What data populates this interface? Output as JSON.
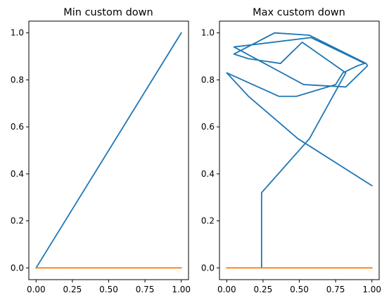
{
  "colors": {
    "series1": "#1f77b4",
    "series2": "#ff7f0e"
  },
  "chart_data": [
    {
      "type": "line",
      "title": "Min custom down",
      "xlim": [
        -0.05,
        1.05
      ],
      "ylim": [
        -0.05,
        1.05
      ],
      "xticks": [
        0.0,
        0.25,
        0.5,
        0.75,
        1.0
      ],
      "xtick_labels": [
        "0.00",
        "0.25",
        "0.50",
        "0.75",
        "1.00"
      ],
      "yticks": [
        0.0,
        0.2,
        0.4,
        0.6,
        0.8,
        1.0
      ],
      "ytick_labels": [
        "0.0",
        "0.2",
        "0.4",
        "0.6",
        "0.8",
        "1.0"
      ],
      "series": [
        {
          "x": [
            0.0,
            1.0
          ],
          "y": [
            0.0,
            1.0
          ]
        },
        {
          "x": [
            0.0,
            1.0
          ],
          "y": [
            0.0,
            0.0
          ]
        }
      ]
    },
    {
      "type": "line",
      "title": "Max custom down",
      "xlim": [
        -0.05,
        1.05
      ],
      "ylim": [
        -0.05,
        1.05
      ],
      "xticks": [
        0.0,
        0.25,
        0.5,
        0.75,
        1.0
      ],
      "xtick_labels": [
        "0.00",
        "0.25",
        "0.50",
        "0.75",
        "1.00"
      ],
      "yticks": [
        0.0,
        0.2,
        0.4,
        0.6,
        0.8,
        1.0
      ],
      "ytick_labels": [
        "0.0",
        "0.2",
        "0.4",
        "0.6",
        "0.8",
        "1.0"
      ],
      "series": [
        {
          "x": [
            0.24,
            0.24,
            0.24,
            0.57,
            0.82,
            0.52,
            0.37,
            0.15,
            0.05,
            0.33,
            0.57,
            0.96,
            0.97,
            0.82,
            0.53,
            0.05,
            0.58,
            0.95,
            0.9,
            0.8,
            0.75,
            0.48,
            0.36,
            0.0,
            0.15,
            0.49,
            1.0
          ],
          "y": [
            0.0,
            0.01,
            0.32,
            0.55,
            0.83,
            0.96,
            0.87,
            0.89,
            0.91,
            1.0,
            0.99,
            0.87,
            0.86,
            0.77,
            0.78,
            0.94,
            0.98,
            0.87,
            0.86,
            0.83,
            0.78,
            0.73,
            0.73,
            0.83,
            0.73,
            0.55,
            0.35
          ]
        },
        {
          "x": [
            0.0,
            1.0
          ],
          "y": [
            0.0,
            0.0
          ]
        }
      ]
    }
  ]
}
